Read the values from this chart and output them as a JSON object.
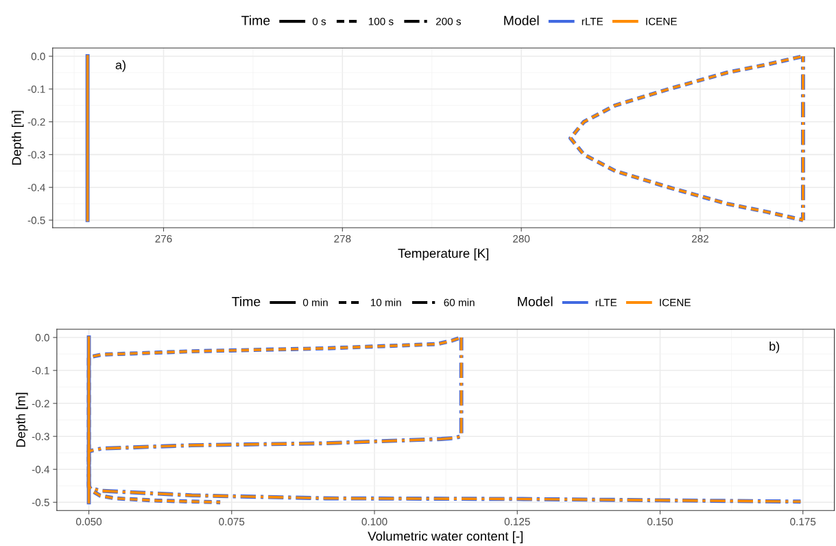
{
  "chart_data": [
    {
      "type": "line",
      "xlabel": "Temperature [K]",
      "ylabel": "Depth [m]",
      "legend_title": [
        "Time",
        "Model"
      ],
      "legend": "top",
      "grid": true,
      "annotations": [
        "a)",
        "0 s",
        "100 s",
        "200 s"
      ],
      "xlim": [
        274.76,
        283.5
      ],
      "xticks": [
        276,
        278,
        280,
        282
      ],
      "ylim": [
        -0.523,
        0.025
      ],
      "yticks": [
        {
          "value": 0,
          "label": "0.0"
        },
        {
          "value": -0.1,
          "label": "-0.1"
        },
        {
          "value": -0.2,
          "label": "-0.2"
        },
        {
          "value": -0.3,
          "label": "-0.3"
        },
        {
          "value": -0.4,
          "label": "-0.4"
        },
        {
          "value": -0.5,
          "label": "-0.5"
        }
      ],
      "series": [
        {
          "name": "rLTE",
          "line_style": "solid",
          "color": "#4169e1",
          "x": [
            275.15,
            275.15
          ],
          "values": [
            0,
            -0.5
          ]
        },
        {
          "line_style": "dashed",
          "color": "#4169e1",
          "x": [
            283.15,
            282.75,
            282.3,
            281.65,
            281.05,
            280.7,
            280.55,
            280.7,
            281.05,
            281.65,
            282.3,
            282.75,
            283.15
          ],
          "values": [
            0,
            -0.025,
            -0.05,
            -0.1,
            -0.15,
            -0.2,
            -0.25,
            -0.3,
            -0.35,
            -0.4,
            -0.45,
            -0.475,
            -0.5
          ]
        },
        {
          "line_style": "dashdot",
          "color": "#4169e1",
          "x": [
            283.15,
            283.15
          ],
          "values": [
            0,
            -0.5
          ]
        },
        {
          "name": "ICENE",
          "line_style": "solid",
          "color": "#ff8c00",
          "x": [
            275.15,
            275.15
          ],
          "values": [
            0,
            -0.5
          ]
        },
        {
          "line_style": "dashed",
          "color": "#ff8c00",
          "x": [
            283.15,
            282.75,
            282.3,
            281.65,
            281.05,
            280.7,
            280.55,
            280.7,
            281.05,
            281.65,
            282.3,
            282.75,
            283.15
          ],
          "values": [
            0,
            -0.025,
            -0.05,
            -0.1,
            -0.15,
            -0.2,
            -0.25,
            -0.3,
            -0.35,
            -0.4,
            -0.45,
            -0.475,
            -0.5
          ]
        },
        {
          "line_style": "dashdot",
          "color": "#ff8c00",
          "x": [
            283.15,
            283.15
          ],
          "values": [
            0,
            -0.5
          ]
        }
      ]
    },
    {
      "type": "line",
      "xlabel": "Volumetric water content [-]",
      "ylabel": "Depth [m]",
      "legend_title": [
        "Time",
        "Model"
      ],
      "legend": "top",
      "grid": true,
      "annotations": [
        "b)",
        "0 min",
        "10 min",
        "60 min"
      ],
      "xlim": [
        0.0444,
        0.1805
      ],
      "xticks": [
        {
          "value": 0.05,
          "label": "0.050"
        },
        {
          "value": 0.075,
          "label": "0.075"
        },
        {
          "value": 0.1,
          "label": "0.100"
        },
        {
          "value": 0.125,
          "label": "0.125"
        },
        {
          "value": 0.15,
          "label": "0.150"
        },
        {
          "value": 0.175,
          "label": "0.175"
        }
      ],
      "ylim": [
        -0.525,
        0.025
      ],
      "yticks": [
        {
          "value": 0,
          "label": "0.0"
        },
        {
          "value": -0.1,
          "label": "-0.1"
        },
        {
          "value": -0.2,
          "label": "-0.2"
        },
        {
          "value": -0.3,
          "label": "-0.3"
        },
        {
          "value": -0.4,
          "label": "-0.4"
        },
        {
          "value": -0.5,
          "label": "-0.5"
        }
      ],
      "series": [
        {
          "name": "rLTE",
          "line_style": "solid",
          "color": "#4169e1",
          "x": [
            0.05,
            0.05
          ],
          "values": [
            0,
            -0.5
          ]
        },
        {
          "line_style": "dashed",
          "color": "#4169e1",
          "x": [
            0.1152,
            0.1135,
            0.111,
            0.0914,
            0.068,
            0.0522,
            0.05,
            0.05,
            0.0505,
            0.052,
            0.0545,
            0.062,
            0.073
          ],
          "values": [
            0,
            -0.01,
            -0.02,
            -0.033,
            -0.042,
            -0.052,
            -0.06,
            -0.45,
            -0.465,
            -0.48,
            -0.488,
            -0.495,
            -0.5
          ]
        },
        {
          "line_style": "dashdot",
          "color": "#4169e1",
          "x": [
            0.1152,
            0.1152,
            0.114,
            0.1117,
            0.0914,
            0.068,
            0.0522,
            0.05,
            0.05,
            0.052,
            0.068,
            0.0914,
            0.125,
            0.15,
            0.1746
          ],
          "values": [
            0,
            -0.3,
            -0.305,
            -0.308,
            -0.321,
            -0.327,
            -0.337,
            -0.345,
            -0.455,
            -0.465,
            -0.479,
            -0.488,
            -0.49,
            -0.494,
            -0.498
          ]
        },
        {
          "name": "ICENE",
          "line_style": "solid",
          "color": "#ff8c00",
          "x": [
            0.05,
            0.05
          ],
          "values": [
            0,
            -0.5
          ]
        },
        {
          "line_style": "dashed",
          "color": "#ff8c00",
          "x": [
            0.1152,
            0.1135,
            0.111,
            0.0914,
            0.068,
            0.0522,
            0.05,
            0.05,
            0.0505,
            0.052,
            0.0545,
            0.062,
            0.073
          ],
          "values": [
            0,
            -0.01,
            -0.02,
            -0.033,
            -0.042,
            -0.052,
            -0.06,
            -0.45,
            -0.465,
            -0.48,
            -0.488,
            -0.495,
            -0.5
          ]
        },
        {
          "line_style": "dashdot",
          "color": "#ff8c00",
          "x": [
            0.1152,
            0.1152,
            0.114,
            0.1117,
            0.0914,
            0.068,
            0.0522,
            0.05,
            0.05,
            0.052,
            0.068,
            0.0914,
            0.125,
            0.15,
            0.1746
          ],
          "values": [
            0,
            -0.3,
            -0.305,
            -0.308,
            -0.321,
            -0.327,
            -0.337,
            -0.345,
            -0.455,
            -0.465,
            -0.479,
            -0.488,
            -0.49,
            -0.494,
            -0.498
          ]
        }
      ]
    }
  ]
}
